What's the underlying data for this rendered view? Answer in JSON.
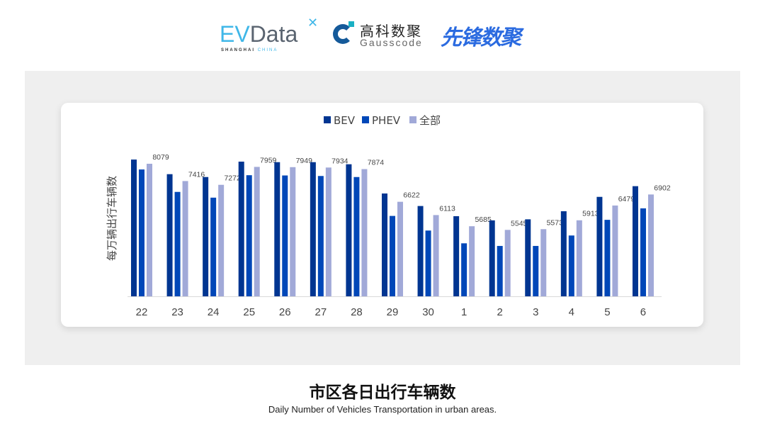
{
  "logos": {
    "evdata": {
      "ev": "EV",
      "data": "Data",
      "tagline_a": "SHANGHAI",
      "tagline_b": "CHINA"
    },
    "gausscode": {
      "cn": "高科数聚",
      "en": "Gausscode"
    },
    "xianfeng": {
      "cn": "先锋数聚"
    }
  },
  "caption": {
    "title": "市区各日出行车辆数",
    "subtitle": "Daily Number of Vehicles Transportation in urban areas."
  },
  "chart_data": {
    "type": "bar",
    "title": "",
    "xlabel": "",
    "ylabel": "每万辆出行车辆数",
    "ylim": [
      3000,
      8400
    ],
    "grid": false,
    "legend": "top-center",
    "categories": [
      "22",
      "23",
      "24",
      "25",
      "26",
      "27",
      "28",
      "29",
      "30",
      "1",
      "2",
      "3",
      "4",
      "5",
      "6"
    ],
    "series": [
      {
        "name": "BEV",
        "color": "#003591",
        "values": [
          8240,
          7680,
          7570,
          8160,
          8140,
          8140,
          8060,
          6940,
          6460,
          6070,
          5910,
          5950,
          6260,
          6810,
          7220
        ]
      },
      {
        "name": "PHEV",
        "color": "#0047b8",
        "values": [
          7860,
          7000,
          6780,
          7640,
          7630,
          7610,
          7570,
          6080,
          5520,
          5030,
          4930,
          4930,
          5330,
          5930,
          6370
        ]
      },
      {
        "name": "全部",
        "color": "#a1a9d8",
        "values": [
          8079,
          7416,
          7272,
          7959,
          7949,
          7934,
          7874,
          6622,
          6113,
          5685,
          5545,
          5573,
          5913,
          6479,
          6902
        ],
        "data_labels": true
      }
    ]
  }
}
